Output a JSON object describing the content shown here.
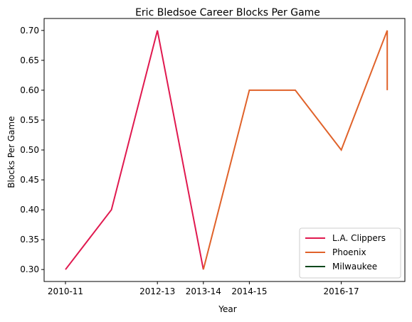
{
  "chart_data": {
    "type": "line",
    "title": "Eric Bledsoe Career Blocks Per Game",
    "xlabel": "Year",
    "ylabel": "Blocks Per Game",
    "x_tick_labels": [
      "2010-11",
      "2012-13",
      "2013-14",
      "2014-15",
      "2016-17"
    ],
    "y_ticks": [
      "0.30",
      "0.35",
      "0.40",
      "0.45",
      "0.50",
      "0.55",
      "0.60",
      "0.65",
      "0.70"
    ],
    "ylim": [
      0.28,
      0.72
    ],
    "series": [
      {
        "name": "L.A. Clippers",
        "color": "#e0194f",
        "points": [
          {
            "x": "2010-11",
            "y": 0.3
          },
          {
            "x": "2011-12",
            "y": 0.4
          },
          {
            "x": "2012-13",
            "y": 0.7
          },
          {
            "x": "2013-14",
            "y": 0.3
          }
        ]
      },
      {
        "name": "Phoenix",
        "color": "#e0622a",
        "points": [
          {
            "x": "2013-14",
            "y": 0.3
          },
          {
            "x": "2014-15",
            "y": 0.6
          },
          {
            "x": "2015-16",
            "y": 0.6
          },
          {
            "x": "2016-17",
            "y": 0.5
          },
          {
            "x": "2017-18",
            "y": 0.7
          },
          {
            "x": "2017-18",
            "y": 0.6
          }
        ]
      },
      {
        "name": "Milwaukee",
        "color": "#00471b",
        "points": []
      }
    ],
    "legend_position": "lower right",
    "grid": false
  }
}
